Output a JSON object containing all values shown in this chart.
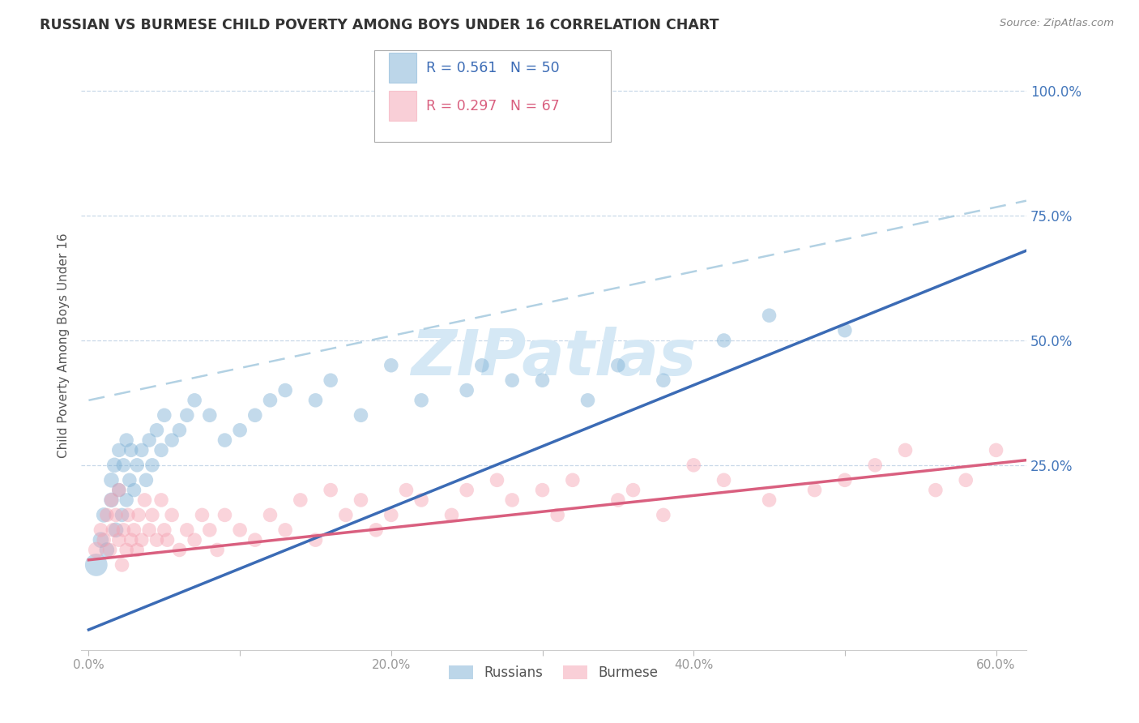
{
  "title": "RUSSIAN VS BURMESE CHILD POVERTY AMONG BOYS UNDER 16 CORRELATION CHART",
  "source": "Source: ZipAtlas.com",
  "ylabel": "Child Poverty Among Boys Under 16",
  "xlim": [
    -0.005,
    0.62
  ],
  "ylim": [
    -0.12,
    1.1
  ],
  "xticks": [
    0.0,
    0.1,
    0.2,
    0.3,
    0.4,
    0.5,
    0.6
  ],
  "xticklabels": [
    "0.0%",
    "",
    "20.0%",
    "",
    "40.0%",
    "",
    "60.0%"
  ],
  "ytick_positions": [
    0.0,
    0.25,
    0.5,
    0.75,
    1.0
  ],
  "ytick_labels": [
    "",
    "25.0%",
    "50.0%",
    "75.0%",
    "100.0%"
  ],
  "russian_color": "#7BAFD4",
  "burmese_color": "#F4A0B0",
  "russian_R": 0.561,
  "russian_N": 50,
  "burmese_R": 0.297,
  "burmese_N": 67,
  "russian_line_color": "#3B6BB5",
  "burmese_line_color": "#D95F7F",
  "dashed_line_color": "#AACCE0",
  "watermark_color": "#D5E8F5",
  "background_color": "#FFFFFF",
  "grid_color": "#C8D8E8",
  "russian_x": [
    0.005,
    0.008,
    0.01,
    0.012,
    0.015,
    0.015,
    0.017,
    0.018,
    0.02,
    0.02,
    0.022,
    0.023,
    0.025,
    0.025,
    0.027,
    0.028,
    0.03,
    0.032,
    0.035,
    0.038,
    0.04,
    0.042,
    0.045,
    0.048,
    0.05,
    0.055,
    0.06,
    0.065,
    0.07,
    0.08,
    0.09,
    0.1,
    0.11,
    0.12,
    0.13,
    0.15,
    0.16,
    0.18,
    0.2,
    0.22,
    0.25,
    0.26,
    0.28,
    0.3,
    0.33,
    0.35,
    0.38,
    0.42,
    0.45,
    0.5
  ],
  "russian_y": [
    0.05,
    0.1,
    0.15,
    0.08,
    0.18,
    0.22,
    0.25,
    0.12,
    0.2,
    0.28,
    0.15,
    0.25,
    0.18,
    0.3,
    0.22,
    0.28,
    0.2,
    0.25,
    0.28,
    0.22,
    0.3,
    0.25,
    0.32,
    0.28,
    0.35,
    0.3,
    0.32,
    0.35,
    0.38,
    0.35,
    0.3,
    0.32,
    0.35,
    0.38,
    0.4,
    0.38,
    0.42,
    0.35,
    0.45,
    0.38,
    0.4,
    0.45,
    0.42,
    0.42,
    0.38,
    0.45,
    0.42,
    0.5,
    0.55,
    0.52
  ],
  "russian_sizes": [
    400,
    200,
    180,
    180,
    180,
    180,
    180,
    180,
    160,
    160,
    160,
    160,
    160,
    160,
    160,
    160,
    160,
    160,
    160,
    160,
    160,
    160,
    160,
    160,
    160,
    160,
    160,
    160,
    160,
    160,
    160,
    160,
    160,
    160,
    160,
    160,
    160,
    160,
    160,
    160,
    160,
    160,
    160,
    160,
    160,
    160,
    160,
    160,
    160,
    160
  ],
  "burmese_x": [
    0.005,
    0.008,
    0.01,
    0.012,
    0.014,
    0.015,
    0.016,
    0.018,
    0.02,
    0.02,
    0.022,
    0.023,
    0.025,
    0.026,
    0.028,
    0.03,
    0.032,
    0.033,
    0.035,
    0.037,
    0.04,
    0.042,
    0.045,
    0.048,
    0.05,
    0.052,
    0.055,
    0.06,
    0.065,
    0.07,
    0.075,
    0.08,
    0.085,
    0.09,
    0.1,
    0.11,
    0.12,
    0.13,
    0.14,
    0.15,
    0.16,
    0.17,
    0.18,
    0.19,
    0.2,
    0.21,
    0.22,
    0.24,
    0.25,
    0.27,
    0.28,
    0.3,
    0.31,
    0.32,
    0.35,
    0.36,
    0.38,
    0.4,
    0.42,
    0.45,
    0.48,
    0.5,
    0.52,
    0.54,
    0.56,
    0.58,
    0.6
  ],
  "burmese_y": [
    0.08,
    0.12,
    0.1,
    0.15,
    0.08,
    0.18,
    0.12,
    0.15,
    0.1,
    0.2,
    0.05,
    0.12,
    0.08,
    0.15,
    0.1,
    0.12,
    0.08,
    0.15,
    0.1,
    0.18,
    0.12,
    0.15,
    0.1,
    0.18,
    0.12,
    0.1,
    0.15,
    0.08,
    0.12,
    0.1,
    0.15,
    0.12,
    0.08,
    0.15,
    0.12,
    0.1,
    0.15,
    0.12,
    0.18,
    0.1,
    0.2,
    0.15,
    0.18,
    0.12,
    0.15,
    0.2,
    0.18,
    0.15,
    0.2,
    0.22,
    0.18,
    0.2,
    0.15,
    0.22,
    0.18,
    0.2,
    0.15,
    0.25,
    0.22,
    0.18,
    0.2,
    0.22,
    0.25,
    0.28,
    0.2,
    0.22,
    0.28
  ],
  "burmese_sizes": [
    200,
    160,
    160,
    160,
    160,
    160,
    160,
    160,
    160,
    160,
    160,
    160,
    160,
    160,
    160,
    160,
    160,
    160,
    160,
    160,
    160,
    160,
    160,
    160,
    160,
    160,
    160,
    160,
    160,
    160,
    160,
    160,
    160,
    160,
    160,
    160,
    160,
    160,
    160,
    160,
    160,
    160,
    160,
    160,
    160,
    160,
    160,
    160,
    160,
    160,
    160,
    160,
    160,
    160,
    160,
    160,
    160,
    160,
    160,
    160,
    160,
    160,
    160,
    160,
    160,
    160,
    160
  ],
  "russian_line_x0": 0.0,
  "russian_line_y0": -0.08,
  "russian_line_x1": 0.62,
  "russian_line_y1": 0.68,
  "dashed_line_y0": 0.38,
  "dashed_line_y1": 0.78,
  "burmese_line_x0": 0.0,
  "burmese_line_y0": 0.06,
  "burmese_line_x1": 0.62,
  "burmese_line_y1": 0.26,
  "legend_russian_text": "R = 0.561   N = 50",
  "legend_burmese_text": "R = 0.297   N = 67",
  "legend_label_russian": "Russians",
  "legend_label_burmese": "Burmese",
  "title_color": "#333333",
  "source_color": "#888888",
  "tick_color": "#999999",
  "ytick_color": "#4477BB"
}
